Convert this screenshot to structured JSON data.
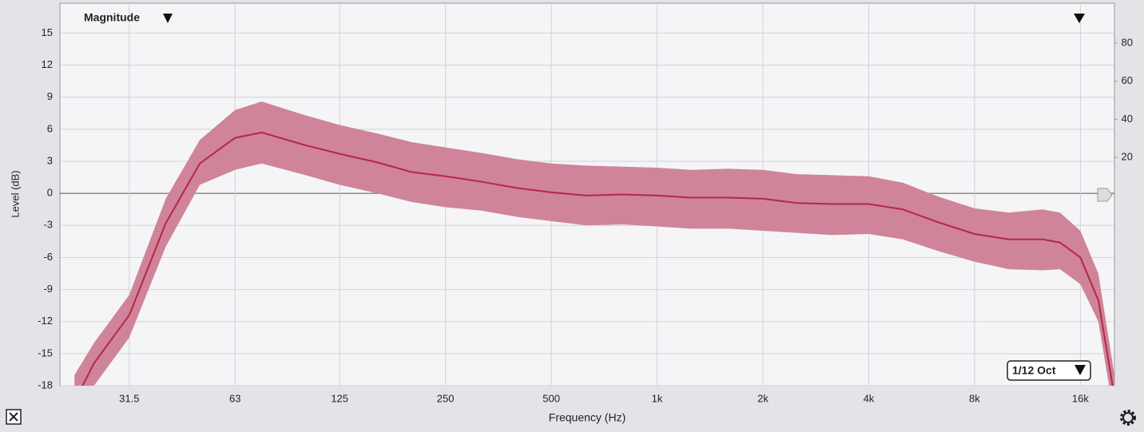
{
  "chart_data": {
    "type": "band_line",
    "view_menu": "Magnitude",
    "resolution_menu": "1/12 Oct",
    "ylabel": "Level (dB)",
    "xlabel": "Frequency (Hz)",
    "log_x": true,
    "grid": true,
    "color": "#b5264a",
    "band_color": "#cf8499",
    "x": [
      22,
      25,
      31.5,
      40,
      50,
      63,
      75,
      100,
      125,
      160,
      200,
      250,
      315,
      400,
      500,
      630,
      800,
      1000,
      1250,
      1600,
      2000,
      2500,
      3150,
      4000,
      5000,
      6300,
      8000,
      10000,
      12500,
      14000,
      16000,
      18000,
      20000
    ],
    "values": [
      -19.5,
      -15.9,
      -11.4,
      -2.8,
      2.8,
      5.2,
      5.7,
      4.5,
      3.7,
      2.9,
      2.0,
      1.6,
      1.1,
      0.5,
      0.1,
      -0.2,
      -0.1,
      -0.2,
      -0.4,
      -0.4,
      -0.5,
      -0.9,
      -1.0,
      -1.0,
      -1.5,
      -2.7,
      -3.8,
      -4.3,
      -4.3,
      -4.6,
      -6.0,
      -10.0,
      -19.0
    ],
    "band_upper": [
      -17.0,
      -14.0,
      -9.5,
      -0.5,
      5.0,
      7.8,
      8.6,
      7.3,
      6.4,
      5.6,
      4.8,
      4.3,
      3.8,
      3.2,
      2.8,
      2.6,
      2.5,
      2.4,
      2.2,
      2.3,
      2.2,
      1.8,
      1.7,
      1.6,
      1.0,
      -0.3,
      -1.4,
      -1.8,
      -1.5,
      -1.8,
      -3.5,
      -7.5,
      -17.0
    ],
    "band_lower": [
      -21.0,
      -18.0,
      -13.5,
      -5.0,
      0.8,
      2.2,
      2.8,
      1.7,
      0.8,
      0.0,
      -0.8,
      -1.3,
      -1.6,
      -2.2,
      -2.6,
      -3.0,
      -2.9,
      -3.1,
      -3.3,
      -3.3,
      -3.5,
      -3.7,
      -3.9,
      -3.8,
      -4.3,
      -5.4,
      -6.4,
      -7.1,
      -7.2,
      -7.1,
      -8.5,
      -12.0,
      -21.0
    ],
    "xlim": [
      20,
      20000
    ],
    "xticks": [
      31.5,
      63,
      125,
      250,
      500,
      {
        "value": 1000,
        "label": "1k"
      },
      {
        "value": 2000,
        "label": "2k"
      },
      {
        "value": 4000,
        "label": "4k"
      },
      {
        "value": 8000,
        "label": "8k"
      },
      {
        "value": 16000,
        "label": "16k"
      }
    ],
    "ylim": [
      -18,
      17.8
    ],
    "yticks": [
      -18,
      -15,
      -12,
      -9,
      -6,
      -3,
      0,
      3,
      6,
      9,
      12,
      15
    ],
    "y2lim": [
      -100,
      101
    ],
    "y2ticks": [
      20,
      40,
      60,
      80
    ]
  }
}
